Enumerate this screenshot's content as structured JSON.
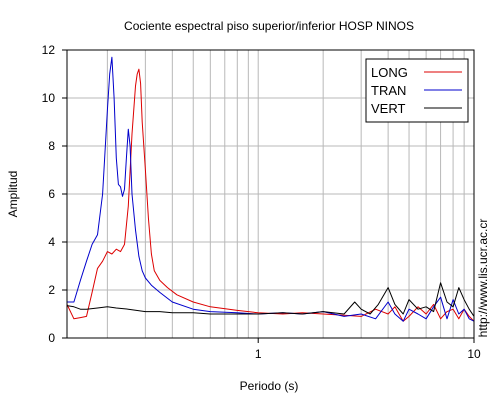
{
  "chart_data": {
    "type": "line",
    "title": "Cociente espectral piso superior/inferior  HOSP NINOS",
    "xlabel": "Periodo (s)",
    "ylabel": "Amplitud",
    "xscale": "log",
    "xlim": [
      0.13,
      10
    ],
    "ylim": [
      0,
      12
    ],
    "xticks": [
      {
        "value": 1,
        "label": "1"
      },
      {
        "value": 10,
        "label": "10"
      }
    ],
    "yticks": [
      {
        "value": 0,
        "label": "0"
      },
      {
        "value": 2,
        "label": "2"
      },
      {
        "value": 4,
        "label": "4"
      },
      {
        "value": 6,
        "label": "6"
      },
      {
        "value": 8,
        "label": "8"
      },
      {
        "value": 10,
        "label": "10"
      },
      {
        "value": 12,
        "label": "12"
      }
    ],
    "grid": true,
    "legend_position": "top-right",
    "side_text": "http://www.lis.ucr.ac.cr",
    "series": [
      {
        "name": "LONG",
        "color": "#dd0000",
        "x": [
          0.13,
          0.14,
          0.15,
          0.16,
          0.17,
          0.18,
          0.19,
          0.2,
          0.21,
          0.22,
          0.23,
          0.24,
          0.25,
          0.26,
          0.27,
          0.275,
          0.28,
          0.285,
          0.29,
          0.3,
          0.31,
          0.32,
          0.33,
          0.35,
          0.38,
          0.42,
          0.5,
          0.6,
          0.8,
          1.0,
          1.3,
          1.6,
          2.0,
          2.5,
          3.0,
          3.5,
          4.0,
          4.3,
          4.7,
          5.0,
          5.5,
          6.0,
          6.5,
          7.0,
          7.5,
          8.0,
          8.5,
          9.0,
          9.5,
          10.0
        ],
        "y": [
          1.4,
          0.8,
          0.85,
          0.9,
          1.9,
          2.9,
          3.2,
          3.6,
          3.5,
          3.7,
          3.6,
          3.9,
          5.5,
          8.5,
          10.5,
          11.0,
          11.2,
          10.6,
          9.0,
          7.0,
          5.0,
          3.5,
          2.8,
          2.4,
          2.1,
          1.8,
          1.5,
          1.3,
          1.15,
          1.05,
          1.0,
          1.05,
          1.0,
          0.95,
          0.9,
          1.2,
          1.0,
          1.3,
          0.7,
          0.9,
          1.3,
          1.0,
          1.4,
          0.8,
          1.1,
          1.2,
          0.8,
          1.2,
          0.9,
          0.7
        ]
      },
      {
        "name": "TRAN",
        "color": "#0000cc",
        "x": [
          0.13,
          0.14,
          0.15,
          0.16,
          0.17,
          0.18,
          0.19,
          0.2,
          0.205,
          0.21,
          0.215,
          0.22,
          0.225,
          0.23,
          0.235,
          0.24,
          0.245,
          0.25,
          0.255,
          0.26,
          0.27,
          0.28,
          0.29,
          0.3,
          0.32,
          0.35,
          0.4,
          0.5,
          0.6,
          0.8,
          1.0,
          1.3,
          1.6,
          2.0,
          2.5,
          3.0,
          3.5,
          4.0,
          4.3,
          4.7,
          5.0,
          5.5,
          6.0,
          6.5,
          7.0,
          7.5,
          8.0,
          8.5,
          9.0,
          9.5,
          10.0
        ],
        "y": [
          1.5,
          1.5,
          2.4,
          3.2,
          3.9,
          4.3,
          6.0,
          9.5,
          11.0,
          11.7,
          10.0,
          7.5,
          6.4,
          6.3,
          5.9,
          6.2,
          7.5,
          8.7,
          8.0,
          6.0,
          4.5,
          3.4,
          2.8,
          2.5,
          2.2,
          1.9,
          1.5,
          1.2,
          1.1,
          1.05,
          1.0,
          1.05,
          1.0,
          1.1,
          0.9,
          1.0,
          0.8,
          1.5,
          1.0,
          0.7,
          1.2,
          1.0,
          0.8,
          1.3,
          1.7,
          0.8,
          1.6,
          1.0,
          1.2,
          0.8,
          0.7
        ]
      },
      {
        "name": "VERT",
        "color": "#000000",
        "x": [
          0.13,
          0.14,
          0.15,
          0.16,
          0.18,
          0.2,
          0.22,
          0.25,
          0.3,
          0.35,
          0.4,
          0.5,
          0.6,
          0.8,
          1.0,
          1.3,
          1.6,
          2.0,
          2.5,
          2.8,
          3.0,
          3.3,
          3.6,
          4.0,
          4.3,
          4.7,
          5.0,
          5.5,
          6.0,
          6.5,
          7.0,
          7.5,
          8.0,
          8.5,
          9.0,
          9.5,
          10.0
        ],
        "y": [
          1.35,
          1.3,
          1.2,
          1.2,
          1.25,
          1.3,
          1.25,
          1.2,
          1.1,
          1.1,
          1.05,
          1.05,
          1.0,
          1.0,
          1.0,
          1.05,
          1.0,
          1.1,
          1.0,
          1.5,
          1.2,
          1.0,
          1.4,
          2.1,
          1.4,
          1.0,
          1.6,
          1.2,
          1.3,
          1.1,
          2.3,
          1.5,
          1.3,
          2.1,
          1.6,
          1.2,
          0.9
        ]
      }
    ]
  }
}
